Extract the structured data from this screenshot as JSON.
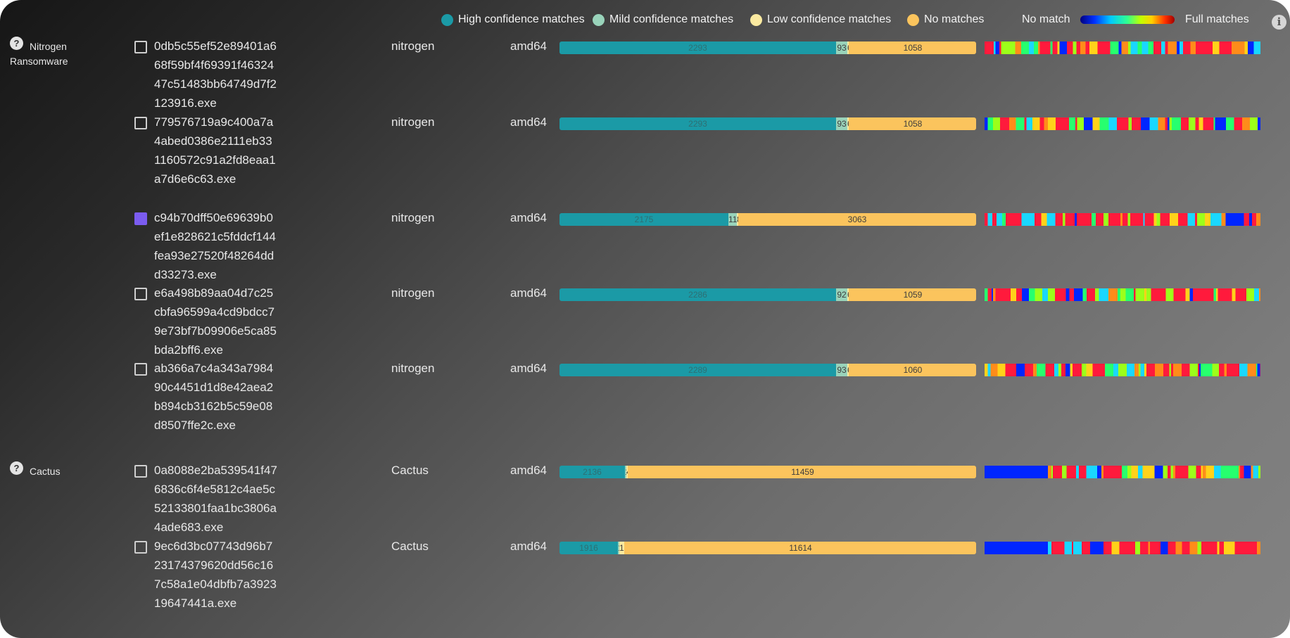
{
  "legend": {
    "items": [
      {
        "label": "High confidence matches",
        "color": "#1b9aa6"
      },
      {
        "label": "Mild confidence matches",
        "color": "#99d3ba"
      },
      {
        "label": "Low confidence matches",
        "color": "#fbeaa0"
      },
      {
        "label": "No matches",
        "color": "#fbc45d"
      }
    ],
    "gradient_left": "No match",
    "gradient_right": "Full matches",
    "info_icon": "info-icon"
  },
  "groups": [
    {
      "name_line1": "Nitrogen",
      "name_line2": "Ransomware",
      "help_icon": "?",
      "rows": [
        {
          "filename": "0db5c55ef52e89401a668f59bf4f69391f4632447c51483bb64749d7f2123916.exe",
          "family": "nitrogen",
          "arch": "amd64",
          "checked": false,
          "high": 2293,
          "mild": 93,
          "low": 6,
          "none": 1058
        },
        {
          "filename": "779576719a9c400a7a4abed0386e2111eb331160572c91a2fd8eaa1a7d6e6c63.exe",
          "family": "nitrogen",
          "arch": "amd64",
          "checked": false,
          "high": 2293,
          "mild": 93,
          "low": 6,
          "none": 1058
        },
        {
          "filename": "c94b70dff50e69639b0ef1e828621c5fddcf144fea93e27520f48264ddd33273.exe",
          "family": "nitrogen",
          "arch": "amd64",
          "checked": true,
          "high": 2175,
          "mild": 113,
          "low": 8,
          "none": 3063
        },
        {
          "filename": "e6a498b89aa04d7c25cbfa96599a4cd9bdcc79e73bf7b09906e5ca85bda2bff6.exe",
          "family": "nitrogen",
          "arch": "amd64",
          "checked": false,
          "high": 2286,
          "mild": 92,
          "low": 6,
          "none": 1059
        },
        {
          "filename": "ab366a7c4a343a798490c4451d1d8e42aea2b894cb3162b5c59e08d8507ffe2c.exe",
          "family": "nitrogen",
          "arch": "amd64",
          "checked": false,
          "high": 2289,
          "mild": 93,
          "low": 6,
          "none": 1060
        }
      ]
    },
    {
      "name_line1": "Cactus",
      "name_line2": "",
      "help_icon": "?",
      "rows": [
        {
          "filename": "0a8088e2ba539541f476836c6f4e5812c4ae5c52133801faa1bc3806a4ade683.exe",
          "family": "Cactus",
          "arch": "amd64",
          "checked": false,
          "high": 2136,
          "mild": 16,
          "low": 40,
          "none": 11459
        },
        {
          "filename": "9ec6d3bc07743d96b723174379620dd56c167c58a1e04dbfb7a392319647441a.exe",
          "family": "Cactus",
          "arch": "amd64",
          "checked": false,
          "high": 1916,
          "mild": 12,
          "low": 170,
          "none": 11614
        }
      ]
    }
  ]
}
